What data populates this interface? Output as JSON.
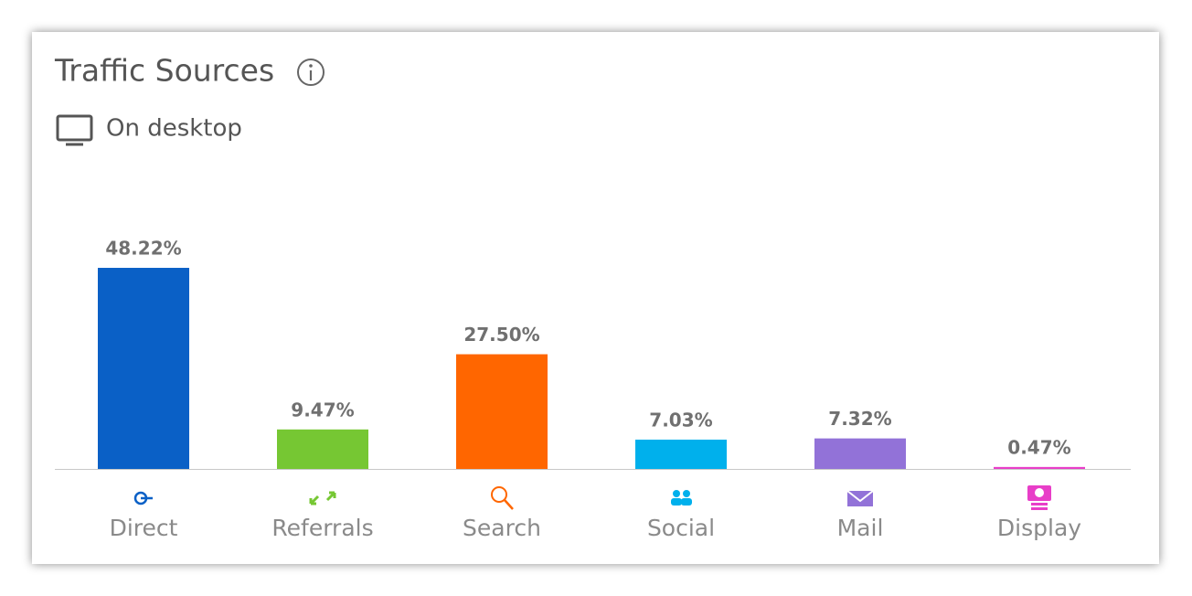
{
  "chart_data": {
    "type": "bar",
    "title": "Traffic Sources",
    "subtitle": "On desktop",
    "categories": [
      "Direct",
      "Referrals",
      "Search",
      "Social",
      "Mail",
      "Display"
    ],
    "values": [
      48.22,
      9.47,
      27.5,
      7.03,
      7.32,
      0.47
    ],
    "value_labels": [
      "48.22%",
      "9.47%",
      "27.50%",
      "7.03%",
      "7.32%",
      "0.47%"
    ],
    "colors": [
      "#0a60c6",
      "#76c733",
      "#ff6600",
      "#00b0ec",
      "#9272d8",
      "#e83ec8"
    ]
  }
}
